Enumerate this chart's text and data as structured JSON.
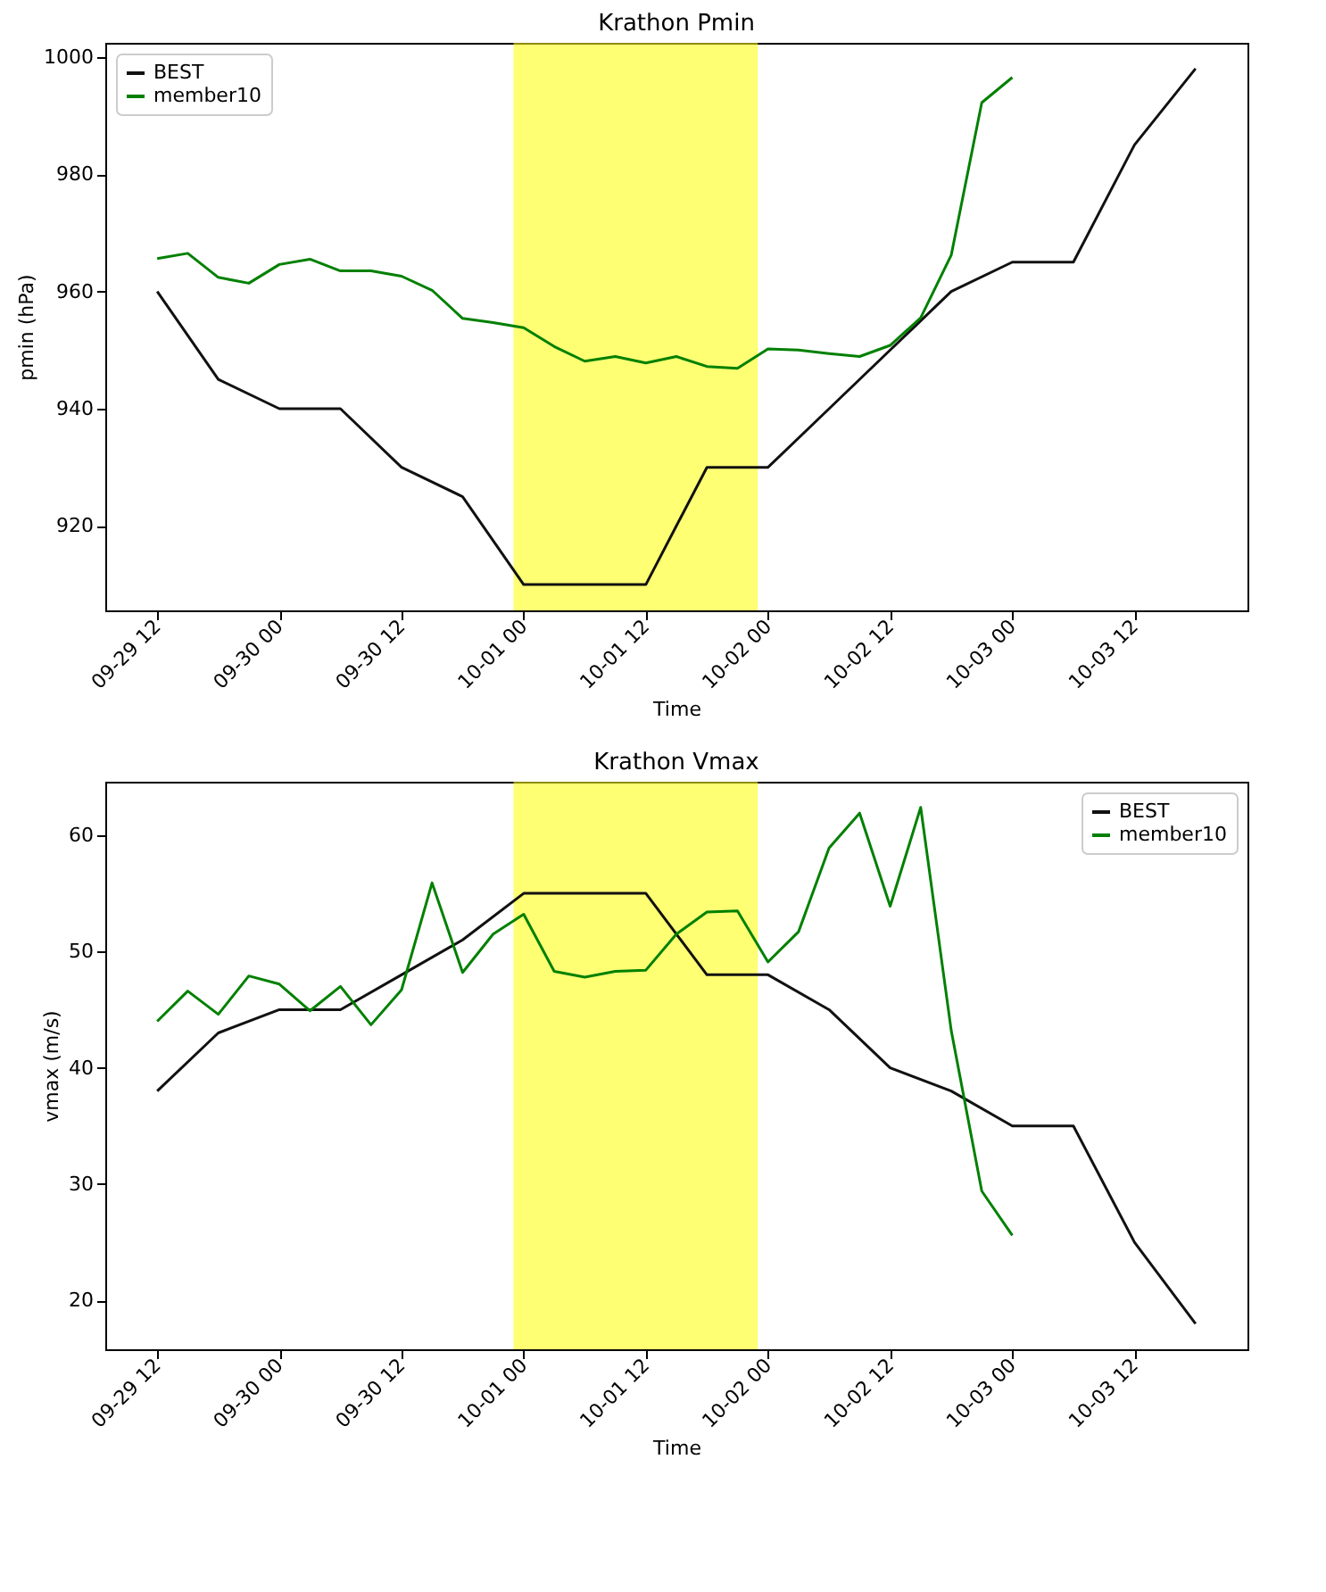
{
  "chart_data": [
    {
      "type": "line",
      "title": "Krathon Pmin",
      "xlabel": "Time",
      "ylabel": "pmin (hPa)",
      "legend": "top left",
      "grid": false,
      "xlim": [
        "--09-29T06:54",
        "--10-03T23:06"
      ],
      "ylim": [
        905.6,
        1002.4
      ],
      "yticks": [
        920,
        940,
        960,
        980,
        1000
      ],
      "xticks": [
        {
          "value": "--09-29T12:00",
          "label": "09-29 12"
        },
        {
          "value": "--09-30T00:00",
          "label": "09-30 00"
        },
        {
          "value": "--09-30T12:00",
          "label": "09-30 12"
        },
        {
          "value": "--10-01T00:00",
          "label": "10-01 00"
        },
        {
          "value": "--10-01T12:00",
          "label": "10-01 12"
        },
        {
          "value": "--10-02T00:00",
          "label": "10-02 00"
        },
        {
          "value": "--10-02T12:00",
          "label": "10-02 12"
        },
        {
          "value": "--10-03T00:00",
          "label": "10-03 00"
        },
        {
          "value": "--10-03T12:00",
          "label": "10-03 12"
        }
      ],
      "bands": [
        {
          "axis": "x",
          "from": "--09-30T23:00",
          "to": "--10-01T23:00",
          "color": "#ffff00"
        }
      ],
      "series": [
        {
          "name": "BEST",
          "color": "#111111",
          "x": [
            "--09-29T12:00",
            "--09-29T18:00",
            "--09-30T00:00",
            "--09-30T06:00",
            "--09-30T12:00",
            "--09-30T18:00",
            "--10-01T00:00",
            "--10-01T06:00",
            "--10-01T12:00",
            "--10-01T18:00",
            "--10-02T00:00",
            "--10-02T06:00",
            "--10-02T12:00",
            "--10-02T18:00",
            "--10-03T00:00",
            "--10-03T06:00",
            "--10-03T12:00",
            "--10-03T18:00"
          ],
          "values": [
            960,
            945,
            940,
            940,
            930,
            925,
            910,
            910,
            910,
            930,
            930,
            940,
            950,
            960,
            965,
            965,
            985,
            998
          ]
        },
        {
          "name": "member10",
          "color": "#008000",
          "x": [
            "--09-29T12:00",
            "--09-29T15:00",
            "--09-29T18:00",
            "--09-29T21:00",
            "--09-30T00:00",
            "--09-30T03:00",
            "--09-30T06:00",
            "--09-30T09:00",
            "--09-30T12:00",
            "--09-30T15:00",
            "--09-30T18:00",
            "--09-30T21:00",
            "--10-01T00:00",
            "--10-01T03:00",
            "--10-01T06:00",
            "--10-01T09:00",
            "--10-01T12:00",
            "--10-01T15:00",
            "--10-01T18:00",
            "--10-01T21:00",
            "--10-02T00:00",
            "--10-02T03:00",
            "--10-02T06:00",
            "--10-02T09:00",
            "--10-02T12:00",
            "--10-02T15:00",
            "--10-02T18:00",
            "--10-02T21:00",
            "--10-03T00:00"
          ],
          "values": [
            965.6,
            966.5,
            962.4,
            961.4,
            964.6,
            965.5,
            963.5,
            963.5,
            962.6,
            960.2,
            955.4,
            954.7,
            953.8,
            950.6,
            948.1,
            948.9,
            947.8,
            948.9,
            947.2,
            946.9,
            950.2,
            950.0,
            949.4,
            948.9,
            950.8,
            955.5,
            966.2,
            992.2,
            996.5
          ]
        }
      ]
    },
    {
      "type": "line",
      "title": "Krathon Vmax",
      "xlabel": "Time",
      "ylabel": "vmax (m/s)",
      "legend": "top right",
      "grid": false,
      "xlim": [
        "--09-29T06:54",
        "--10-03T23:06"
      ],
      "ylim": [
        15.8,
        64.6
      ],
      "yticks": [
        20,
        30,
        40,
        50,
        60
      ],
      "xticks": [
        {
          "value": "--09-29T12:00",
          "label": "09-29 12"
        },
        {
          "value": "--09-30T00:00",
          "label": "09-30 00"
        },
        {
          "value": "--09-30T12:00",
          "label": "09-30 12"
        },
        {
          "value": "--10-01T00:00",
          "label": "10-01 00"
        },
        {
          "value": "--10-01T12:00",
          "label": "10-01 12"
        },
        {
          "value": "--10-02T00:00",
          "label": "10-02 00"
        },
        {
          "value": "--10-02T12:00",
          "label": "10-02 12"
        },
        {
          "value": "--10-03T00:00",
          "label": "10-03 00"
        },
        {
          "value": "--10-03T12:00",
          "label": "10-03 12"
        }
      ],
      "bands": [
        {
          "axis": "x",
          "from": "--09-30T23:00",
          "to": "--10-01T23:00",
          "color": "#ffff00"
        }
      ],
      "series": [
        {
          "name": "BEST",
          "color": "#111111",
          "x": [
            "--09-29T12:00",
            "--09-29T18:00",
            "--09-30T00:00",
            "--09-30T06:00",
            "--09-30T12:00",
            "--09-30T18:00",
            "--10-01T00:00",
            "--10-01T06:00",
            "--10-01T12:00",
            "--10-01T18:00",
            "--10-02T00:00",
            "--10-02T06:00",
            "--10-02T12:00",
            "--10-02T18:00",
            "--10-03T00:00",
            "--10-03T06:00",
            "--10-03T12:00",
            "--10-03T18:00"
          ],
          "values": [
            38,
            43,
            45,
            45,
            48,
            51,
            55,
            55,
            55,
            48,
            48,
            45,
            40,
            38,
            35,
            35,
            25,
            18
          ]
        },
        {
          "name": "member10",
          "color": "#008000",
          "x": [
            "--09-29T12:00",
            "--09-29T15:00",
            "--09-29T18:00",
            "--09-29T21:00",
            "--09-30T00:00",
            "--09-30T03:00",
            "--09-30T06:00",
            "--09-30T09:00",
            "--09-30T12:00",
            "--09-30T15:00",
            "--09-30T18:00",
            "--09-30T21:00",
            "--10-01T00:00",
            "--10-01T03:00",
            "--10-01T06:00",
            "--10-01T09:00",
            "--10-01T12:00",
            "--10-01T15:00",
            "--10-01T18:00",
            "--10-01T21:00",
            "--10-02T00:00",
            "--10-02T03:00",
            "--10-02T06:00",
            "--10-02T09:00",
            "--10-02T12:00",
            "--10-02T15:00",
            "--10-02T18:00",
            "--10-02T21:00",
            "--10-03T00:00"
          ],
          "values": [
            44.0,
            46.6,
            44.6,
            47.9,
            47.2,
            44.9,
            47.0,
            43.7,
            46.7,
            55.9,
            48.2,
            51.5,
            53.2,
            48.3,
            47.8,
            48.3,
            48.4,
            51.5,
            53.4,
            53.5,
            49.1,
            51.7,
            58.9,
            61.9,
            53.9,
            62.4,
            43.2,
            29.4,
            25.6
          ]
        }
      ]
    }
  ]
}
